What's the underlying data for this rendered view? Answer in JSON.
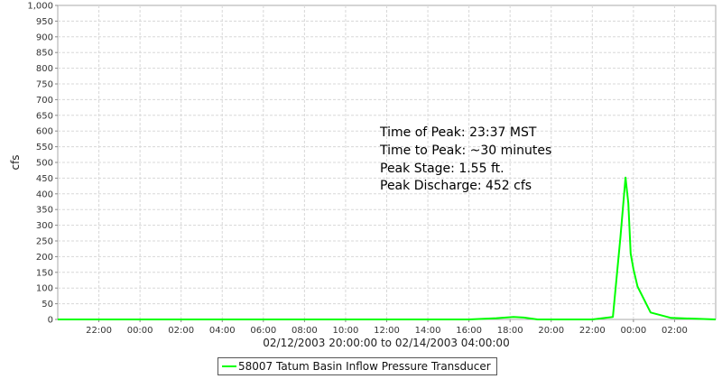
{
  "chart_data": {
    "type": "line",
    "ylabel": "cfs",
    "xlabel": "02/12/2003 20:00:00 to 02/14/2003 04:00:00",
    "x_range": [
      "2003-02-12 20:00",
      "2003-02-14 04:00"
    ],
    "ylim": [
      0,
      1000
    ],
    "y_ticks": [
      0,
      50,
      100,
      150,
      200,
      250,
      300,
      350,
      400,
      450,
      500,
      550,
      600,
      650,
      700,
      750,
      800,
      850,
      900,
      950,
      1000
    ],
    "y_tick_labels": [
      "0",
      "50",
      "100",
      "150",
      "200",
      "250",
      "300",
      "350",
      "400",
      "450",
      "500",
      "550",
      "600",
      "650",
      "700",
      "750",
      "800",
      "850",
      "900",
      "950",
      "1,000"
    ],
    "x_ticks": [
      "2003-02-12 22:00",
      "2003-02-13 00:00",
      "2003-02-13 02:00",
      "2003-02-13 04:00",
      "2003-02-13 06:00",
      "2003-02-13 08:00",
      "2003-02-13 10:00",
      "2003-02-13 12:00",
      "2003-02-13 14:00",
      "2003-02-13 16:00",
      "2003-02-13 18:00",
      "2003-02-13 20:00",
      "2003-02-13 22:00",
      "2003-02-14 00:00",
      "2003-02-14 02:00"
    ],
    "x_tick_labels": [
      "22:00",
      "00:00",
      "02:00",
      "04:00",
      "06:00",
      "08:00",
      "10:00",
      "12:00",
      "14:00",
      "16:00",
      "18:00",
      "20:00",
      "22:00",
      "00:00",
      "02:00"
    ],
    "grid": true,
    "series": [
      {
        "name": "58007 Tatum Basin Inflow Pressure Transducer",
        "color": "#00ff00",
        "points": [
          [
            "2003-02-12 20:00",
            0
          ],
          [
            "2003-02-13 16:00",
            0
          ],
          [
            "2003-02-13 17:20",
            4
          ],
          [
            "2003-02-13 18:10",
            8
          ],
          [
            "2003-02-13 18:40",
            6
          ],
          [
            "2003-02-13 19:20",
            0
          ],
          [
            "2003-02-13 22:00",
            0
          ],
          [
            "2003-02-13 23:00",
            8
          ],
          [
            "2003-02-13 23:22",
            260
          ],
          [
            "2003-02-13 23:37",
            452
          ],
          [
            "2003-02-13 23:45",
            370
          ],
          [
            "2003-02-13 23:52",
            210
          ],
          [
            "2003-02-14 00:00",
            160
          ],
          [
            "2003-02-14 00:12",
            105
          ],
          [
            "2003-02-14 00:50",
            22
          ],
          [
            "2003-02-14 01:50",
            5
          ],
          [
            "2003-02-14 04:00",
            0
          ]
        ]
      }
    ],
    "legend_position": "bottom",
    "annotations": [
      "Time of Peak: 23:37 MST",
      "Time to Peak: ~30 minutes",
      "Peak Stage: 1.55 ft.",
      "Peak Discharge: 452 cfs"
    ]
  }
}
